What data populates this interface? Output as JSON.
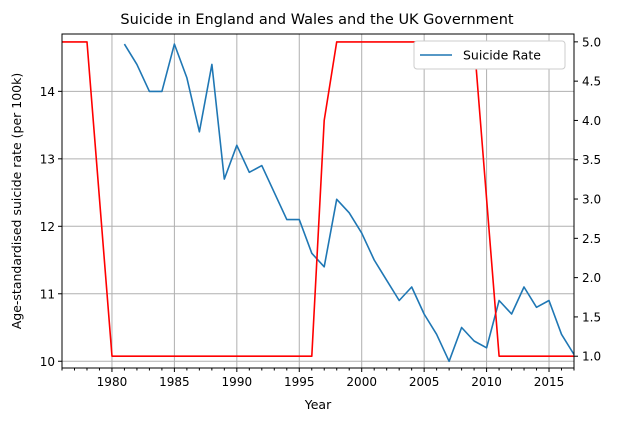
{
  "chart_data": {
    "type": "line",
    "title": "Suicide in England and Wales and the UK Government",
    "xlabel": "Year",
    "ylabel": "Age-standardised suicide rate (per 100k)",
    "xlim": [
      1976,
      2017
    ],
    "ylim": [
      9.9,
      14.85
    ],
    "y2lim": [
      0.85,
      5.1
    ],
    "grid": true,
    "legend_position": "top-right",
    "x_ticks": [
      1980,
      1985,
      1990,
      1995,
      2000,
      2005,
      2010,
      2015
    ],
    "y_ticks": [
      10,
      11,
      12,
      13,
      14
    ],
    "y2_ticks": [
      1.0,
      1.5,
      2.0,
      2.5,
      3.0,
      3.5,
      4.0,
      4.5,
      5.0
    ],
    "y2_tick_labels": [
      "1.0",
      "1.5",
      "2.0",
      "2.5",
      "3.0",
      "3.5",
      "4.0",
      "4.5",
      "5.0"
    ],
    "series": [
      {
        "name": "Suicide Rate",
        "color": "#1f77b4",
        "axis": "left",
        "x": [
          1981,
          1982,
          1983,
          1984,
          1985,
          1986,
          1987,
          1988,
          1989,
          1990,
          1991,
          1992,
          1993,
          1994,
          1995,
          1996,
          1997,
          1998,
          1999,
          2000,
          2001,
          2002,
          2003,
          2004,
          2005,
          2006,
          2007,
          2008,
          2009,
          2010,
          2011,
          2012,
          2013,
          2014,
          2015,
          2016,
          2017
        ],
        "values": [
          14.7,
          14.4,
          14.0,
          14.0,
          14.7,
          14.2,
          13.4,
          14.4,
          12.7,
          13.2,
          12.8,
          12.9,
          12.5,
          12.1,
          12.1,
          11.6,
          11.4,
          12.4,
          12.2,
          11.9,
          11.5,
          11.2,
          10.9,
          11.1,
          10.7,
          10.4,
          10.0,
          10.5,
          10.3,
          10.2,
          10.9,
          10.7,
          11.1,
          10.8,
          10.9,
          10.4,
          10.1
        ]
      },
      {
        "color": "#ff0000",
        "axis": "right",
        "x": [
          1976,
          1977,
          1978,
          1980,
          1996,
          1997,
          1998,
          2009,
          2011,
          2017
        ],
        "values": [
          5.0,
          5.0,
          5.0,
          1.0,
          1.0,
          4.0,
          5.0,
          5.0,
          1.0,
          1.0
        ]
      }
    ]
  }
}
